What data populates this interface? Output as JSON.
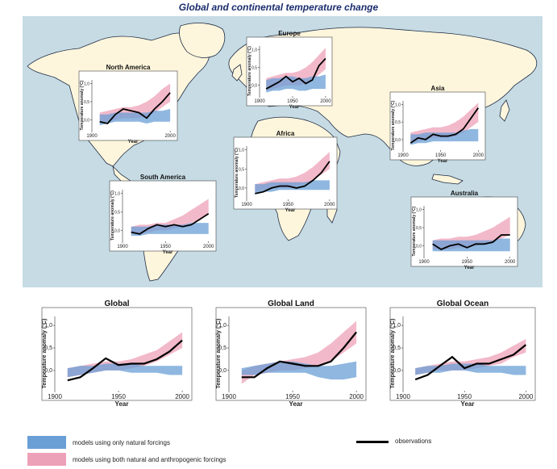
{
  "title": "Global and continental temperature change",
  "colors": {
    "ocean": "#c6dbe4",
    "land": "#fdf6dc",
    "coast": "#1f2a44",
    "natural": "#6a9fd6",
    "anthropogenic": "#eda1b8",
    "overlap": "#b58ab9",
    "observed": "#000000",
    "title": "#1a2d6e"
  },
  "legend": {
    "natural": "models using only natural forcings",
    "anthropogenic": "models using both natural and anthropogenic forcings",
    "observations": "observations"
  },
  "chart_data": [
    {
      "id": "north-america",
      "type": "area",
      "title": "North America",
      "xlabel": "Year",
      "ylabel": "Temperature anomaly (°C)",
      "xticks": [
        "1900",
        "2000"
      ],
      "yticks": [
        "1,0",
        "0,5",
        "0,0"
      ],
      "xlim": [
        1900,
        2005
      ],
      "ylim": [
        -0.3,
        1.1
      ],
      "x": [
        1910,
        1920,
        1930,
        1940,
        1950,
        1960,
        1970,
        1980,
        1990,
        2000
      ],
      "natural": {
        "low": [
          -0.15,
          -0.1,
          -0.05,
          -0.05,
          -0.05,
          -0.05,
          -0.1,
          -0.05,
          -0.05,
          -0.05
        ],
        "high": [
          0.15,
          0.15,
          0.2,
          0.2,
          0.2,
          0.2,
          0.2,
          0.25,
          0.25,
          0.3
        ]
      },
      "anthropogenic": {
        "low": [
          -0.1,
          -0.05,
          0.0,
          0.05,
          0.05,
          0.05,
          0.1,
          0.2,
          0.35,
          0.5
        ],
        "high": [
          0.2,
          0.25,
          0.3,
          0.35,
          0.35,
          0.4,
          0.5,
          0.65,
          0.85,
          1.0
        ]
      },
      "observed": [
        -0.05,
        -0.1,
        0.15,
        0.3,
        0.25,
        0.2,
        0.05,
        0.3,
        0.5,
        0.75
      ]
    },
    {
      "id": "europe",
      "type": "area",
      "title": "Europe",
      "xlabel": "Year",
      "ylabel": "Temperature anomaly (°C)",
      "xticks": [
        "1900",
        "1950",
        "2000"
      ],
      "yticks": [
        "1,0",
        "0,5",
        "0,0"
      ],
      "xlim": [
        1900,
        2005
      ],
      "ylim": [
        -0.3,
        1.1
      ],
      "x": [
        1910,
        1920,
        1930,
        1940,
        1950,
        1960,
        1970,
        1980,
        1990,
        2000
      ],
      "natural": {
        "low": [
          -0.2,
          -0.15,
          -0.15,
          -0.1,
          -0.1,
          -0.15,
          -0.15,
          -0.1,
          -0.1,
          -0.1
        ],
        "high": [
          0.15,
          0.2,
          0.2,
          0.25,
          0.25,
          0.2,
          0.2,
          0.25,
          0.25,
          0.3
        ]
      },
      "anthropogenic": {
        "low": [
          -0.15,
          -0.1,
          -0.05,
          0.0,
          0.0,
          0.0,
          0.05,
          0.15,
          0.3,
          0.45
        ],
        "high": [
          0.2,
          0.25,
          0.3,
          0.35,
          0.35,
          0.4,
          0.5,
          0.65,
          0.85,
          1.05
        ]
      },
      "observed": [
        -0.1,
        0.0,
        0.1,
        0.25,
        0.1,
        0.2,
        0.05,
        0.15,
        0.55,
        0.75
      ]
    },
    {
      "id": "asia",
      "type": "area",
      "title": "Asia",
      "xlabel": "Year",
      "ylabel": "Temperature anomaly (°C)",
      "xticks": [
        "1900",
        "1950",
        "2000"
      ],
      "yticks": [
        "1,0",
        "0,5",
        "0,0"
      ],
      "xlim": [
        1900,
        2005
      ],
      "ylim": [
        -0.3,
        1.1
      ],
      "x": [
        1910,
        1920,
        1930,
        1940,
        1950,
        1960,
        1970,
        1980,
        1990,
        2000
      ],
      "natural": {
        "low": [
          -0.15,
          -0.1,
          -0.1,
          -0.05,
          -0.05,
          -0.05,
          -0.05,
          -0.05,
          -0.05,
          -0.05
        ],
        "high": [
          0.15,
          0.15,
          0.2,
          0.2,
          0.2,
          0.2,
          0.2,
          0.25,
          0.3,
          0.3
        ]
      },
      "anthropogenic": {
        "low": [
          -0.1,
          -0.05,
          0.0,
          0.05,
          0.05,
          0.05,
          0.1,
          0.2,
          0.35,
          0.5
        ],
        "high": [
          0.2,
          0.25,
          0.3,
          0.35,
          0.35,
          0.4,
          0.5,
          0.65,
          0.85,
          1.05
        ]
      },
      "observed": [
        -0.1,
        0.05,
        0.0,
        0.15,
        0.1,
        0.1,
        0.15,
        0.3,
        0.6,
        0.9
      ]
    },
    {
      "id": "africa",
      "type": "area",
      "title": "Africa",
      "xlabel": "Year",
      "ylabel": "Temperature anomaly (°C)",
      "xticks": [
        "1900",
        "1950",
        "2000"
      ],
      "yticks": [
        "1,0",
        "0,5",
        "0,0"
      ],
      "xlim": [
        1900,
        2005
      ],
      "ylim": [
        -0.3,
        1.1
      ],
      "x": [
        1910,
        1920,
        1930,
        1940,
        1950,
        1960,
        1970,
        1980,
        1990,
        2000
      ],
      "natural": {
        "low": [
          -0.15,
          -0.1,
          -0.1,
          -0.05,
          -0.05,
          -0.05,
          -0.05,
          -0.05,
          -0.05,
          -0.05
        ],
        "high": [
          0.1,
          0.1,
          0.15,
          0.15,
          0.15,
          0.15,
          0.15,
          0.2,
          0.2,
          0.2
        ]
      },
      "anthropogenic": {
        "low": [
          -0.1,
          -0.05,
          0.0,
          0.0,
          0.0,
          0.05,
          0.1,
          0.2,
          0.35,
          0.5
        ],
        "high": [
          0.1,
          0.15,
          0.2,
          0.25,
          0.25,
          0.3,
          0.4,
          0.55,
          0.75,
          0.95
        ]
      },
      "observed": [
        -0.15,
        -0.1,
        0.0,
        0.05,
        0.05,
        0.0,
        0.05,
        0.2,
        0.4,
        0.7
      ]
    },
    {
      "id": "south-america",
      "type": "area",
      "title": "South America",
      "xlabel": "Year",
      "ylabel": "Temperature anomaly (°C)",
      "xticks": [
        "1900",
        "1950",
        "2000"
      ],
      "yticks": [
        "1,0",
        "0,5",
        "0,0"
      ],
      "xlim": [
        1900,
        2005
      ],
      "ylim": [
        -0.3,
        1.1
      ],
      "x": [
        1910,
        1920,
        1930,
        1940,
        1950,
        1960,
        1970,
        1980,
        1990,
        2000
      ],
      "natural": {
        "low": [
          -0.15,
          -0.15,
          -0.1,
          -0.1,
          -0.1,
          -0.1,
          -0.1,
          -0.1,
          -0.1,
          -0.1
        ],
        "high": [
          0.1,
          0.1,
          0.1,
          0.15,
          0.15,
          0.15,
          0.15,
          0.2,
          0.2,
          0.2
        ]
      },
      "anthropogenic": {
        "low": [
          -0.1,
          -0.1,
          -0.05,
          0.0,
          0.0,
          0.05,
          0.1,
          0.2,
          0.3,
          0.45
        ],
        "high": [
          0.1,
          0.15,
          0.15,
          0.2,
          0.2,
          0.3,
          0.4,
          0.55,
          0.7,
          0.85
        ]
      },
      "observed": [
        -0.05,
        -0.1,
        0.05,
        0.15,
        0.1,
        0.15,
        0.1,
        0.15,
        0.3,
        0.45
      ]
    },
    {
      "id": "australia",
      "type": "area",
      "title": "Australia",
      "xlabel": "Year",
      "ylabel": "Temperature anomaly (°C)",
      "xticks": [
        "1900",
        "1950",
        "2000"
      ],
      "yticks": [
        "1,0",
        "0,5",
        "0,0"
      ],
      "xlim": [
        1900,
        2005
      ],
      "ylim": [
        -0.3,
        1.1
      ],
      "x": [
        1910,
        1920,
        1930,
        1940,
        1950,
        1960,
        1970,
        1980,
        1990,
        2000
      ],
      "natural": {
        "low": [
          -0.15,
          -0.15,
          -0.15,
          -0.15,
          -0.15,
          -0.15,
          -0.15,
          -0.15,
          -0.15,
          -0.15
        ],
        "high": [
          0.15,
          0.15,
          0.15,
          0.15,
          0.15,
          0.15,
          0.15,
          0.15,
          0.2,
          0.2
        ]
      },
      "anthropogenic": {
        "low": [
          -0.1,
          -0.1,
          -0.1,
          -0.05,
          -0.05,
          0.0,
          0.05,
          0.1,
          0.2,
          0.3
        ],
        "high": [
          0.15,
          0.2,
          0.2,
          0.25,
          0.25,
          0.3,
          0.4,
          0.5,
          0.65,
          0.8
        ]
      },
      "observed": [
        0.05,
        -0.1,
        0.0,
        0.05,
        -0.05,
        0.05,
        0.05,
        0.1,
        0.3,
        0.3
      ]
    },
    {
      "id": "global",
      "type": "area",
      "title": "Global",
      "xlabel": "Year",
      "ylabel": "Temperature anomaly (°C)",
      "xticks": [
        "1900",
        "1950",
        "2000"
      ],
      "yticks": [
        "1,0",
        "0,5",
        "0,0"
      ],
      "xlim": [
        1900,
        2005
      ],
      "ylim": [
        -0.45,
        1.2
      ],
      "x": [
        1910,
        1920,
        1930,
        1940,
        1950,
        1960,
        1970,
        1980,
        1990,
        2000
      ],
      "natural": {
        "low": [
          -0.15,
          -0.1,
          -0.05,
          0.0,
          0.0,
          -0.05,
          -0.05,
          -0.05,
          -0.1,
          -0.1
        ],
        "high": [
          0.05,
          0.1,
          0.1,
          0.15,
          0.15,
          0.15,
          0.1,
          0.1,
          0.1,
          0.1
        ]
      },
      "anthropogenic": {
        "low": [
          -0.15,
          -0.1,
          -0.05,
          0.0,
          0.0,
          0.05,
          0.1,
          0.2,
          0.35,
          0.5
        ],
        "high": [
          0.05,
          0.1,
          0.15,
          0.2,
          0.2,
          0.25,
          0.35,
          0.45,
          0.65,
          0.85
        ]
      },
      "observed": [
        -0.22,
        -0.15,
        0.05,
        0.27,
        0.12,
        0.15,
        0.15,
        0.25,
        0.42,
        0.67
      ]
    },
    {
      "id": "global-land",
      "type": "area",
      "title": "Global Land",
      "xlabel": "Year",
      "ylabel": "Temperature anomaly (°C)",
      "xticks": [
        "1900",
        "1950",
        "2000"
      ],
      "yticks": [
        "1,0",
        "0,5",
        "0,0"
      ],
      "xlim": [
        1900,
        2005
      ],
      "ylim": [
        -0.45,
        1.2
      ],
      "x": [
        1910,
        1920,
        1930,
        1940,
        1950,
        1960,
        1970,
        1980,
        1990,
        2000
      ],
      "natural": {
        "low": [
          -0.1,
          -0.1,
          -0.05,
          -0.05,
          -0.05,
          -0.05,
          -0.15,
          -0.2,
          -0.2,
          -0.15
        ],
        "high": [
          0.05,
          0.1,
          0.15,
          0.2,
          0.2,
          0.15,
          0.1,
          0.1,
          0.15,
          0.2
        ]
      },
      "anthropogenic": {
        "low": [
          -0.3,
          -0.1,
          -0.05,
          0.0,
          0.0,
          0.05,
          0.1,
          0.2,
          0.4,
          0.6
        ],
        "high": [
          0.0,
          0.1,
          0.15,
          0.2,
          0.25,
          0.3,
          0.4,
          0.6,
          0.85,
          1.1
        ]
      },
      "observed": [
        -0.15,
        -0.15,
        0.05,
        0.2,
        0.15,
        0.1,
        0.1,
        0.2,
        0.5,
        0.85
      ]
    },
    {
      "id": "global-ocean",
      "type": "area",
      "title": "Global Ocean",
      "xlabel": "Year",
      "ylabel": "Temperature anomaly (°C)",
      "xticks": [
        "1900",
        "1950",
        "2000"
      ],
      "yticks": [
        "1,0",
        "0,5",
        "0,0"
      ],
      "xlim": [
        1900,
        2005
      ],
      "ylim": [
        -0.45,
        1.2
      ],
      "x": [
        1910,
        1920,
        1930,
        1940,
        1950,
        1960,
        1970,
        1980,
        1990,
        2000
      ],
      "natural": {
        "low": [
          -0.1,
          -0.05,
          -0.05,
          0.0,
          0.0,
          -0.05,
          -0.05,
          -0.05,
          -0.1,
          -0.1
        ],
        "high": [
          0.05,
          0.1,
          0.1,
          0.15,
          0.15,
          0.15,
          0.1,
          0.1,
          0.1,
          0.1
        ]
      },
      "anthropogenic": {
        "low": [
          -0.1,
          -0.05,
          0.0,
          0.0,
          0.0,
          0.05,
          0.1,
          0.15,
          0.3,
          0.4
        ],
        "high": [
          0.05,
          0.1,
          0.15,
          0.2,
          0.2,
          0.25,
          0.3,
          0.4,
          0.55,
          0.7
        ]
      },
      "observed": [
        -0.2,
        -0.1,
        0.1,
        0.3,
        0.05,
        0.15,
        0.15,
        0.25,
        0.35,
        0.57
      ]
    }
  ]
}
